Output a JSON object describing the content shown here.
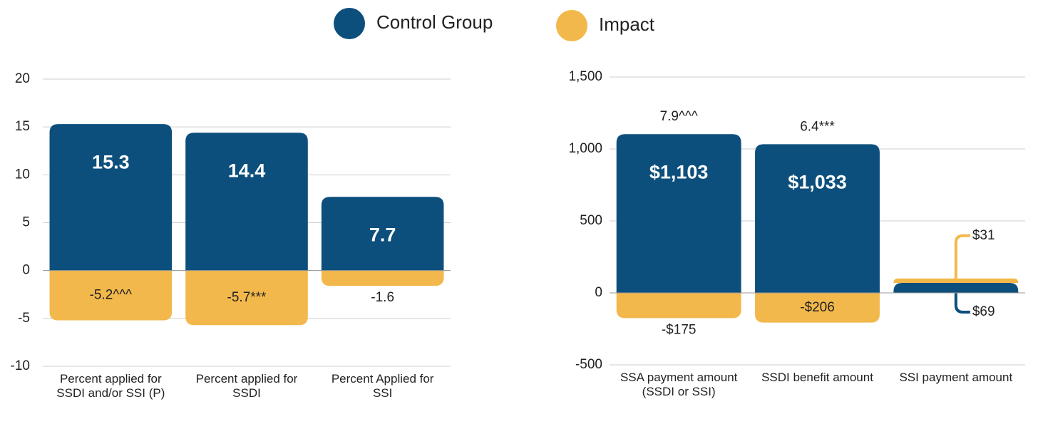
{
  "chart_data": [
    {
      "type": "bar",
      "categories": [
        "Percent applied for SSDI and/or SSI (P)",
        "Percent applied for SSDI",
        "Percent Applied for SSI"
      ],
      "series": [
        {
          "name": "Control Group",
          "color": "#0d4f7c",
          "values": [
            15.3,
            14.4,
            7.7
          ]
        },
        {
          "name": "Impact",
          "color": "#f2b84b",
          "values": [
            -5.2,
            -5.7,
            -1.6
          ],
          "value_labels": [
            "-5.2^^^",
            "-5.7***",
            "-1.6"
          ]
        }
      ],
      "ylim": [
        -10,
        20
      ],
      "yticks": [
        -10,
        -5,
        0,
        5,
        10,
        15,
        20
      ],
      "grid": true
    },
    {
      "type": "bar",
      "categories": [
        "SSA payment amount (SSDI or SSI)",
        "SSDI benefit amount",
        "SSI payment amount"
      ],
      "annotations": [
        "7.9^^^",
        "6.4***",
        null
      ],
      "series": [
        {
          "color": "#0d4f7c",
          "values": [
            1103,
            1033,
            69
          ],
          "value_labels": [
            "$1,103",
            "$1,033",
            "$69"
          ]
        },
        {
          "color": "#f2b84b",
          "values": [
            -175,
            -206,
            31
          ],
          "value_labels": [
            "-$175",
            "-$206",
            "$31"
          ]
        }
      ],
      "ylim": [
        -500,
        1500
      ],
      "yticks": [
        -500,
        0,
        500,
        {
          "value": 1000,
          "label": "1,000"
        },
        {
          "value": 1500,
          "label": "1,500"
        }
      ],
      "grid": true
    }
  ]
}
